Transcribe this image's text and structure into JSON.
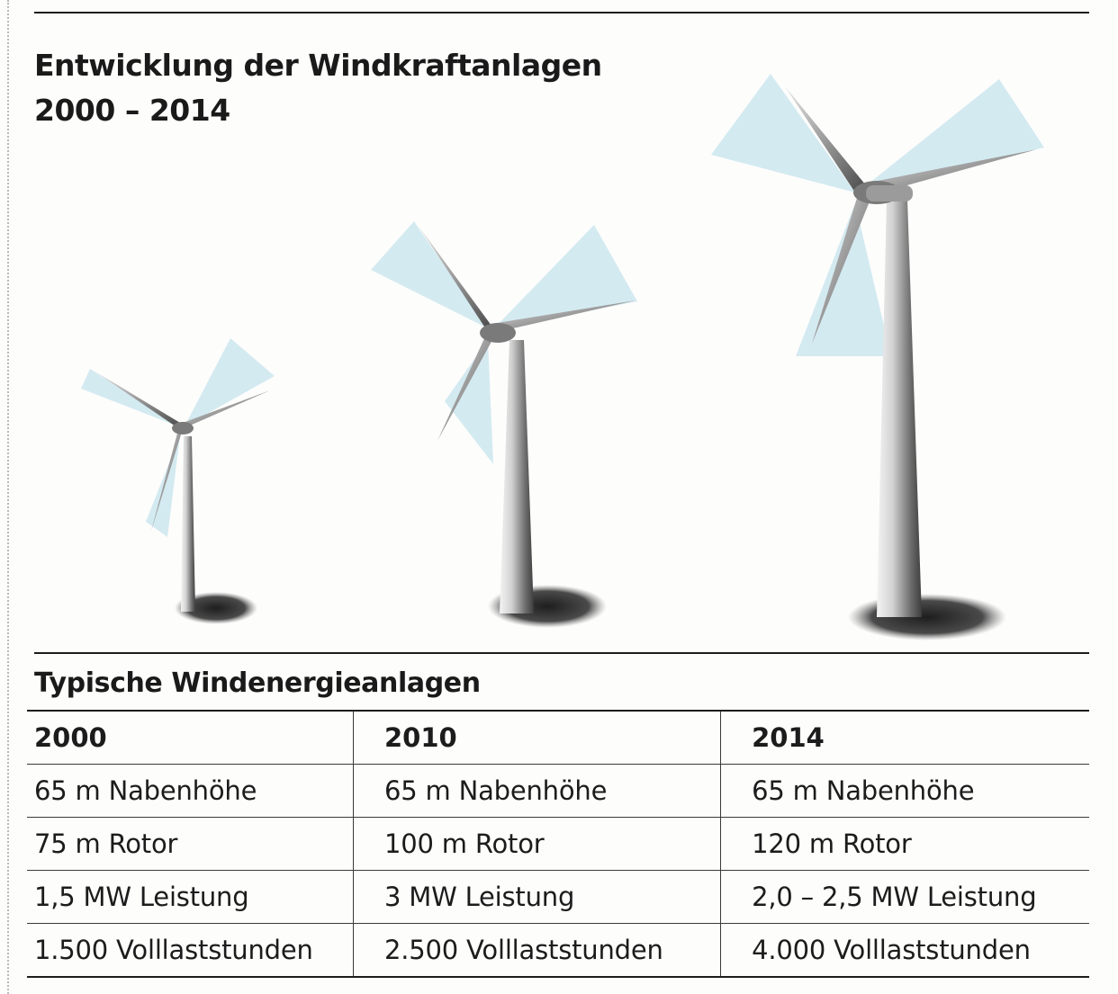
{
  "title": {
    "line1": "Entwicklung der Windkraftanlagen",
    "line2": "2000 – 2014"
  },
  "table": {
    "heading": "Typische Windenergieanlagen",
    "columns": [
      "2000",
      "2010",
      "2014"
    ],
    "rows": [
      [
        "65 m Nabenhöhe",
        "65 m Nabenhöhe",
        "65 m Nabenhöhe"
      ],
      [
        "75 m Rotor",
        "100 m Rotor",
        "120 m Rotor"
      ],
      [
        "1,5 MW Leistung",
        "3 MW Leistung",
        "2,0 – 2,5 MW Leistung"
      ],
      [
        "1.500 Volllaststunden",
        "2.500 Volllaststunden",
        "4.000 Volllaststunden"
      ]
    ]
  },
  "illustration": {
    "icon": "wind-turbine-icon",
    "turbines": [
      "2000",
      "2010",
      "2014"
    ],
    "colors": {
      "blade_sweep": "#cfe8f0",
      "tower": "#8f8f8f",
      "shadow": "#2a2a2a"
    }
  }
}
